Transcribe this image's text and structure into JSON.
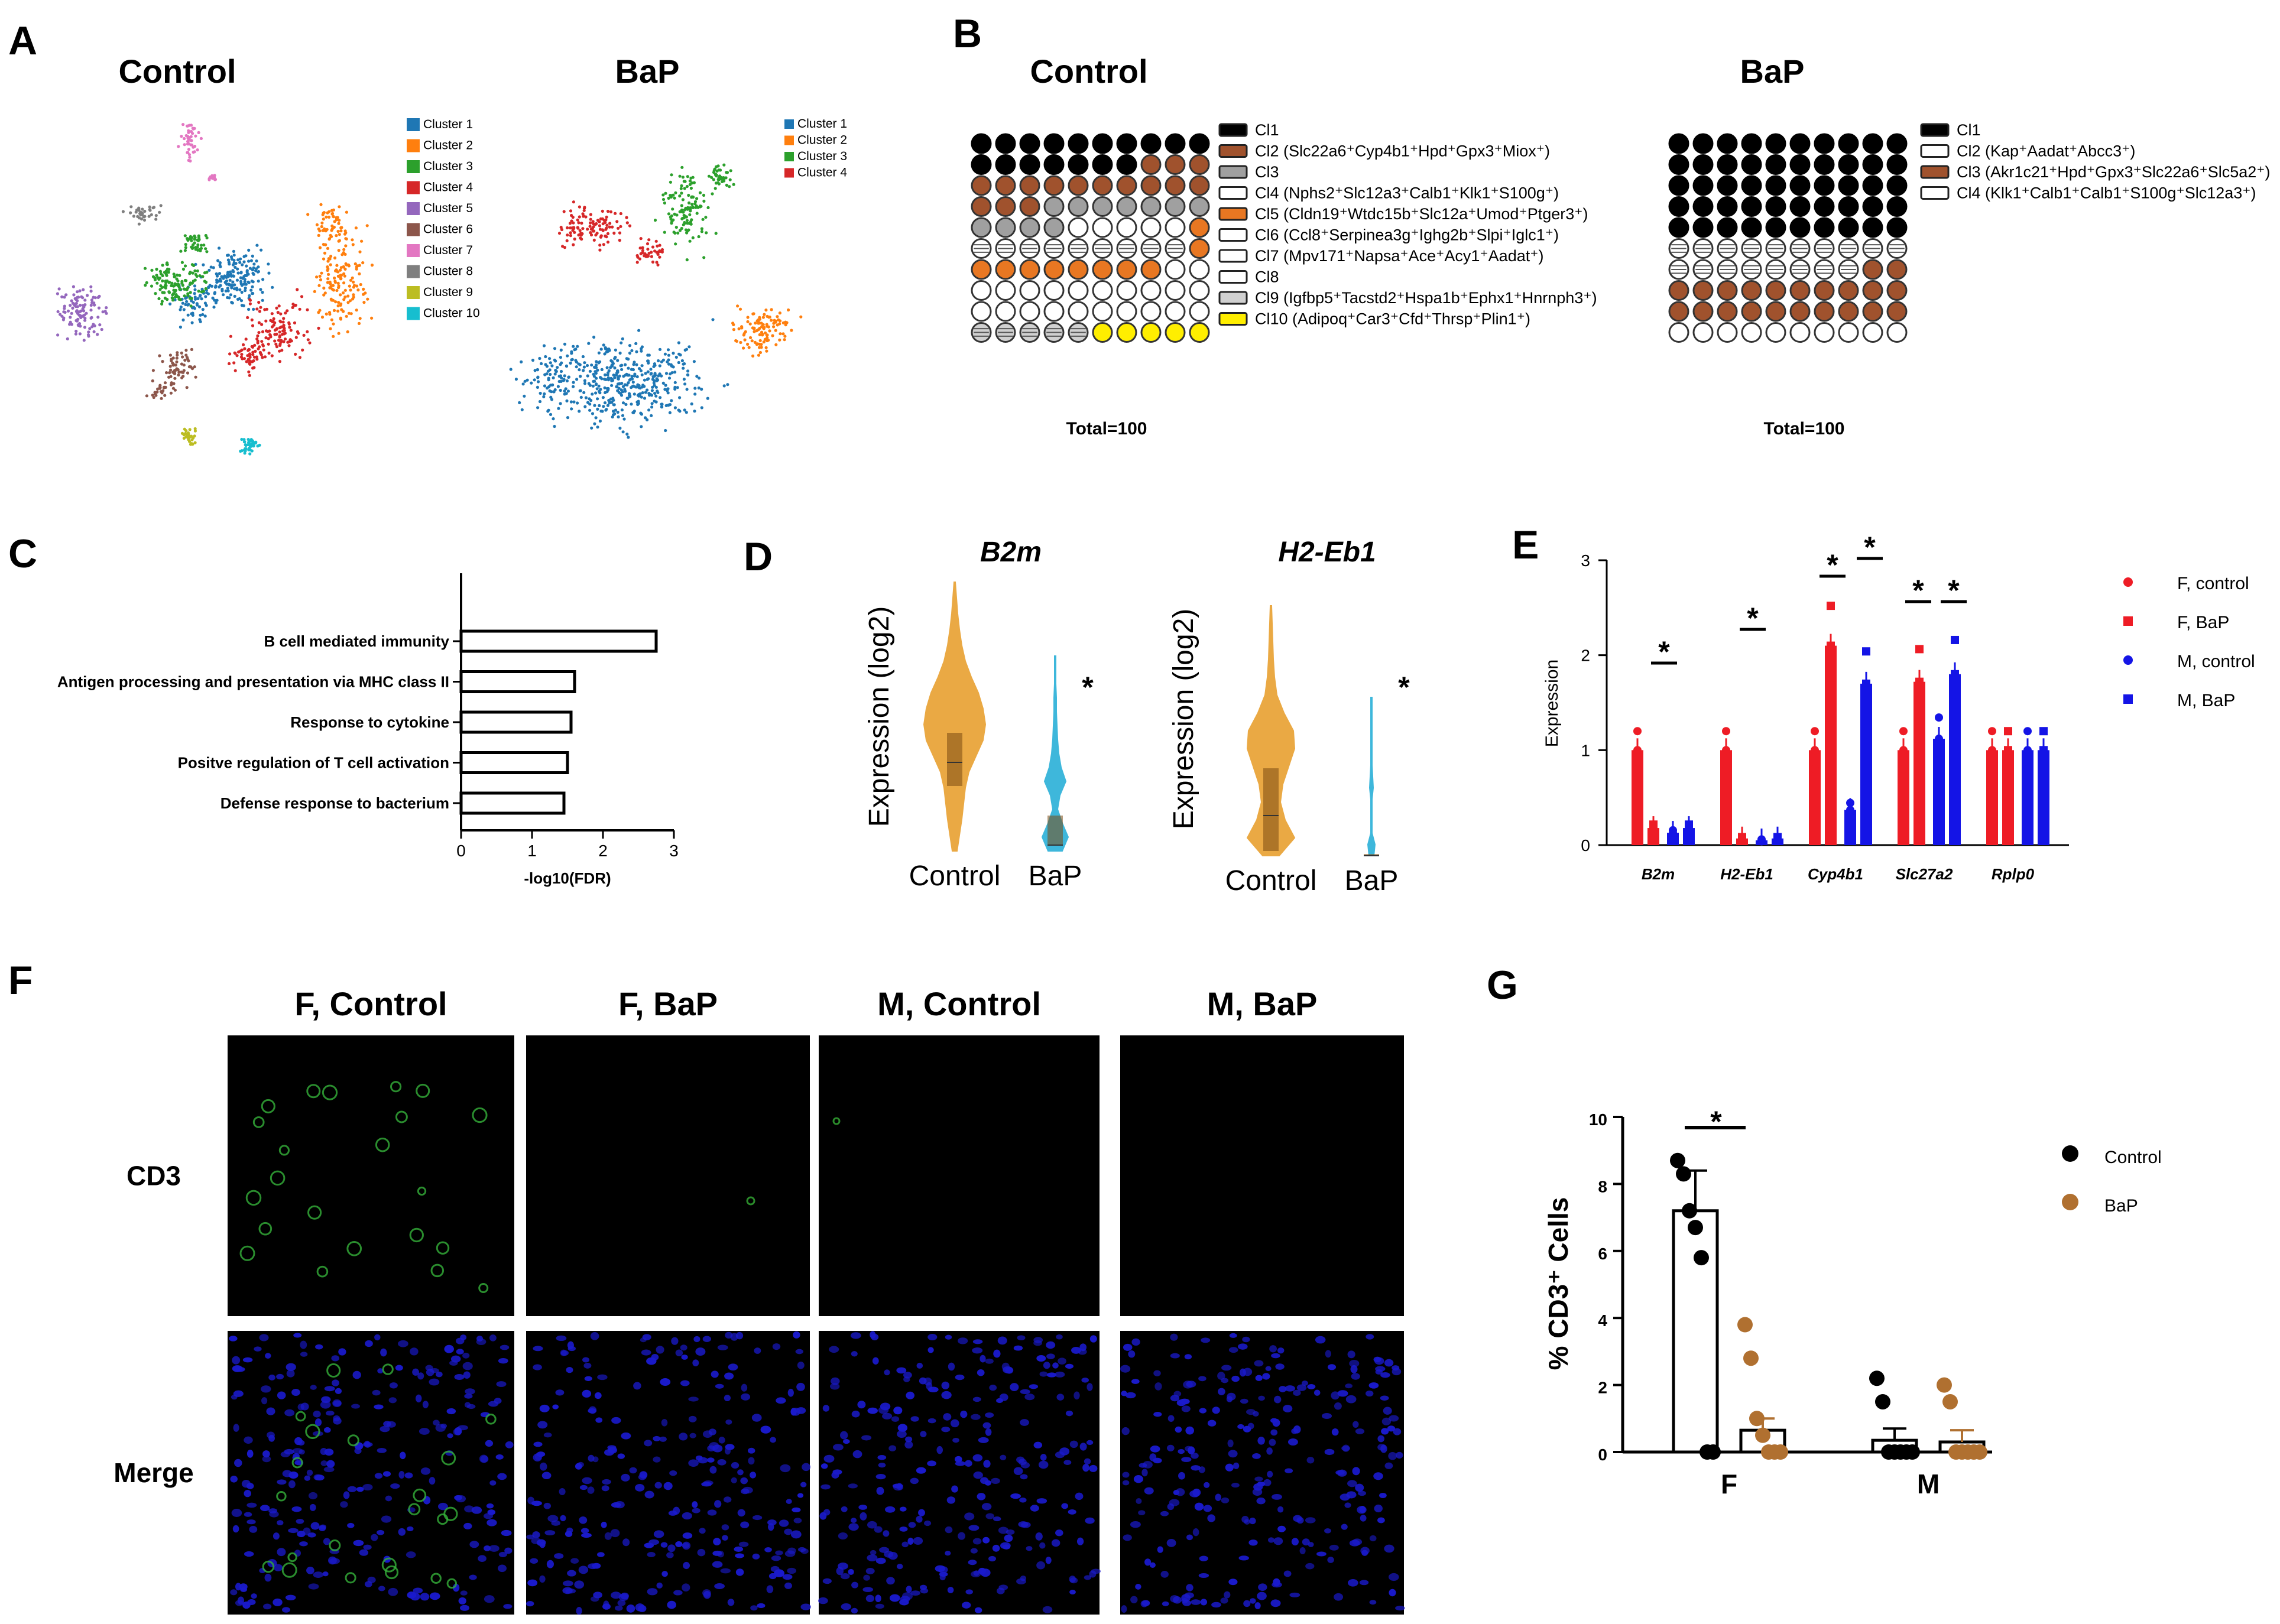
{
  "panels": {
    "a": "A",
    "b": "B",
    "c": "C",
    "d": "D",
    "e": "E",
    "f": "F",
    "g": "G"
  },
  "panel_a": {
    "control_title": "Control",
    "bap_title": "BaP",
    "control_legend": [
      "Cluster 1",
      "Cluster 2",
      "Cluster 3",
      "Cluster 4",
      "Cluster 5",
      "Cluster 6",
      "Cluster 7",
      "Cluster 8",
      "Cluster 9",
      "Cluster 10"
    ],
    "bap_legend": [
      "Cluster 1",
      "Cluster 2",
      "Cluster 3",
      "Cluster 4"
    ],
    "cluster_colors": [
      "#1f77b4",
      "#ff7f0e",
      "#2ca02c",
      "#d62728",
      "#9467bd",
      "#8c564b",
      "#e377c2",
      "#7f7f7f",
      "#bcbd22",
      "#17becf"
    ]
  },
  "panel_b": {
    "control_title": "Control",
    "bap_title": "BaP",
    "control_total": "Total=100",
    "bap_total": "Total=100",
    "control_legend": [
      {
        "label": "Cl1",
        "fill": "#000000"
      },
      {
        "label": "Cl2 (Slc22a6⁺Cyp4b1⁺Hpd⁺Gpx3⁺Miox⁺)",
        "fill": "#a0522d"
      },
      {
        "label": "Cl3",
        "fill": "#a0a0a0"
      },
      {
        "label": "Cl4 (Nphs2⁺Slc12a3⁺Calb1⁺Klk1⁺S100g⁺)",
        "fill": "#ffffff"
      },
      {
        "label": "Cl5 (Cldn19⁺Wtdc15b⁺Slc12a⁺Umod⁺Ptger3⁺)",
        "fill": "#e87722"
      },
      {
        "label": "Cl6 (Ccl8⁺Serpinea3g⁺Ighg2b⁺Slpi⁺Iglc1⁺)",
        "fill": "#ffffff"
      },
      {
        "label": "Cl7 (Mpv171⁺Napsa⁺Ace⁺Acy1⁺Aadat⁺)",
        "fill": "#ffffff"
      },
      {
        "label": "Cl8",
        "fill": "#ffffff"
      },
      {
        "label": "Cl9 (Igfbp5⁺Tacstd2⁺Hspa1b⁺Ephx1⁺Hnrnph3⁺)",
        "fill": "#d0d0d0"
      },
      {
        "label": "Cl10 (Adipoq⁺Car3⁺Cfd⁺Thrsp⁺Plin1⁺)",
        "fill": "#ffee00"
      }
    ],
    "bap_legend": [
      {
        "label": "Cl1",
        "fill": "#000000"
      },
      {
        "label": "Cl2 (Kap⁺Aadat⁺Abcc3⁺)",
        "fill": "#ffffff"
      },
      {
        "label": "Cl3 (Akr1c21⁺Hpd⁺Gpx3⁺Slc22a6⁺Slc5a2⁺)",
        "fill": "#a0522d"
      },
      {
        "label": "Cl4 (Klk1⁺Calb1⁺Calb1⁺S100g⁺Slc12a3⁺)",
        "fill": "#ffffff"
      }
    ],
    "control_grid": [
      [
        0,
        0,
        0,
        0,
        0,
        0,
        0,
        0,
        0,
        0
      ],
      [
        0,
        0,
        0,
        0,
        0,
        0,
        0,
        1,
        1,
        1
      ],
      [
        1,
        1,
        1,
        1,
        1,
        1,
        1,
        1,
        1,
        1
      ],
      [
        1,
        1,
        1,
        2,
        2,
        2,
        2,
        2,
        2,
        2
      ],
      [
        2,
        2,
        2,
        2,
        3,
        3,
        3,
        3,
        3,
        4
      ],
      [
        5,
        5,
        5,
        5,
        5,
        5,
        5,
        5,
        5,
        4
      ],
      [
        4,
        4,
        4,
        4,
        4,
        4,
        4,
        4,
        6,
        6
      ],
      [
        6,
        6,
        6,
        6,
        6,
        6,
        6,
        6,
        6,
        6
      ],
      [
        7,
        7,
        7,
        7,
        7,
        7,
        7,
        7,
        7,
        7
      ],
      [
        8,
        8,
        8,
        8,
        8,
        9,
        9,
        9,
        9,
        9
      ]
    ],
    "bap_grid": [
      [
        0,
        0,
        0,
        0,
        0,
        0,
        0,
        0,
        0,
        0
      ],
      [
        0,
        0,
        0,
        0,
        0,
        0,
        0,
        0,
        0,
        0
      ],
      [
        0,
        0,
        0,
        0,
        0,
        0,
        0,
        0,
        0,
        0
      ],
      [
        0,
        0,
        0,
        0,
        0,
        0,
        0,
        0,
        0,
        0
      ],
      [
        0,
        0,
        0,
        0,
        0,
        0,
        0,
        0,
        0,
        0
      ],
      [
        1,
        1,
        1,
        1,
        1,
        1,
        1,
        1,
        1,
        1
      ],
      [
        1,
        1,
        1,
        1,
        1,
        1,
        1,
        1,
        2,
        2
      ],
      [
        2,
        2,
        2,
        2,
        2,
        2,
        2,
        2,
        2,
        2
      ],
      [
        2,
        2,
        2,
        2,
        2,
        2,
        2,
        2,
        2,
        2
      ],
      [
        3,
        3,
        3,
        3,
        3,
        3,
        3,
        3,
        3,
        3
      ]
    ]
  },
  "chart_data": [
    {
      "id": "C",
      "type": "bar",
      "orientation": "horizontal",
      "categories": [
        "B cell mediated immunity",
        "Antigen processing and presentation via MHC class II",
        "Response to cytokine",
        "Positve regulation of T cell activation",
        "Defense response to bacterium"
      ],
      "values": [
        2.75,
        1.6,
        1.55,
        1.5,
        1.45
      ],
      "xlabel": "-log10(FDR)",
      "xlim": [
        0,
        3
      ],
      "xticks": [
        "0",
        "1",
        "2",
        "3"
      ]
    },
    {
      "id": "D",
      "type": "violin",
      "panels": [
        {
          "gene": "B2m",
          "groups": [
            "Control",
            "BaP"
          ],
          "significant": "*"
        },
        {
          "gene": "H2-Eb1",
          "groups": [
            "Control",
            "BaP"
          ],
          "significant": "*"
        }
      ],
      "ylabel": "Expression (log2)"
    },
    {
      "id": "E",
      "type": "bar",
      "categories": [
        "B2m",
        "H2-Eb1",
        "Cyp4b1",
        "Slc27a2",
        "Rplp0"
      ],
      "series": [
        {
          "name": "F, control",
          "color": "#ee1c25",
          "values": [
            1.0,
            1.0,
            1.0,
            1.0,
            1.0
          ]
        },
        {
          "name": "F, BaP",
          "color": "#ee1c25",
          "values": [
            0.18,
            0.07,
            2.1,
            1.72,
            1.0
          ]
        },
        {
          "name": "M, control",
          "color": "#1414e6",
          "values": [
            0.13,
            0.05,
            0.37,
            1.12,
            1.0
          ]
        },
        {
          "name": "M, BaP",
          "color": "#1414e6",
          "values": [
            0.18,
            0.07,
            1.7,
            1.8,
            1.0
          ]
        }
      ],
      "ylabel": "Expression",
      "ylim": [
        0,
        3
      ],
      "yticks": [
        "0",
        "1",
        "2",
        "3"
      ],
      "significance": [
        {
          "category": "B2m",
          "label": "*"
        },
        {
          "category": "H2-Eb1",
          "label": "*"
        },
        {
          "category": "Cyp4b1",
          "label": "*"
        },
        {
          "category": "Cyp4b1",
          "label": "*"
        },
        {
          "category": "Slc27a2",
          "label": "*"
        },
        {
          "category": "Slc27a2",
          "label": "*"
        }
      ]
    },
    {
      "id": "G",
      "type": "bar",
      "categories": [
        "F",
        "M"
      ],
      "series": [
        {
          "name": "Control",
          "color": "#000000",
          "values": [
            7.2,
            0.35
          ],
          "points": [
            [
              8.7,
              8.3,
              7.2,
              6.7,
              5.8,
              0.0,
              0.0
            ],
            [
              2.2,
              1.5,
              0,
              0,
              0,
              0,
              0
            ]
          ]
        },
        {
          "name": "BaP",
          "color": "#b07030",
          "values": [
            0.65,
            0.3
          ],
          "points": [
            [
              3.8,
              2.8,
              1.0,
              0.5,
              0.0,
              0.0,
              0.0
            ],
            [
              2.0,
              1.5,
              0,
              0,
              0,
              0,
              0
            ]
          ]
        }
      ],
      "ylabel": "% CD3⁺ Cells",
      "ylim": [
        0,
        10
      ],
      "yticks": [
        "0",
        "2",
        "4",
        "6",
        "8",
        "10"
      ],
      "significance": [
        {
          "category": "F",
          "label": "*"
        }
      ]
    }
  ],
  "panel_f": {
    "columns": [
      "F, Control",
      "F, BaP",
      "M, Control",
      "M, BaP"
    ],
    "rows": [
      "CD3",
      "Merge"
    ]
  }
}
